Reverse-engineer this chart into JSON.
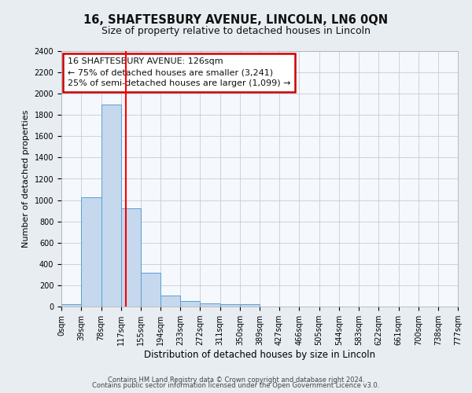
{
  "title": "16, SHAFTESBURY AVENUE, LINCOLN, LN6 0QN",
  "subtitle": "Size of property relative to detached houses in Lincoln",
  "xlabel": "Distribution of detached houses by size in Lincoln",
  "ylabel": "Number of detached properties",
  "footer_line1": "Contains HM Land Registry data © Crown copyright and database right 2024.",
  "footer_line2": "Contains public sector information licensed under the Open Government Licence v3.0.",
  "bins": [
    0,
    39,
    78,
    117,
    155,
    194,
    233,
    272,
    311,
    350,
    389,
    427,
    466,
    505,
    544,
    583,
    622,
    661,
    700,
    738,
    777
  ],
  "bar_heights": [
    20,
    1025,
    1900,
    920,
    320,
    105,
    50,
    30,
    20,
    20,
    0,
    0,
    0,
    0,
    0,
    0,
    0,
    0,
    0,
    0
  ],
  "bar_color": "#c5d8ee",
  "bar_edge_color": "#5a9fd4",
  "red_line_x": 126,
  "ylim": [
    0,
    2400
  ],
  "yticks": [
    0,
    200,
    400,
    600,
    800,
    1000,
    1200,
    1400,
    1600,
    1800,
    2000,
    2200,
    2400
  ],
  "ann_line1": "16 SHAFTESBURY AVENUE: 126sqm",
  "ann_line2": "← 75% of detached houses are smaller (3,241)",
  "ann_line3": "25% of semi-detached houses are larger (1,099) →",
  "fig_bg_color": "#e8edf2",
  "plot_bg_color": "#f5f8fc",
  "grid_color": "#c8cdd4",
  "title_fontsize": 10.5,
  "subtitle_fontsize": 9,
  "tick_fontsize": 7,
  "ylabel_fontsize": 8,
  "xlabel_fontsize": 8.5,
  "footer_fontsize": 6,
  "ann_fontsize": 8
}
